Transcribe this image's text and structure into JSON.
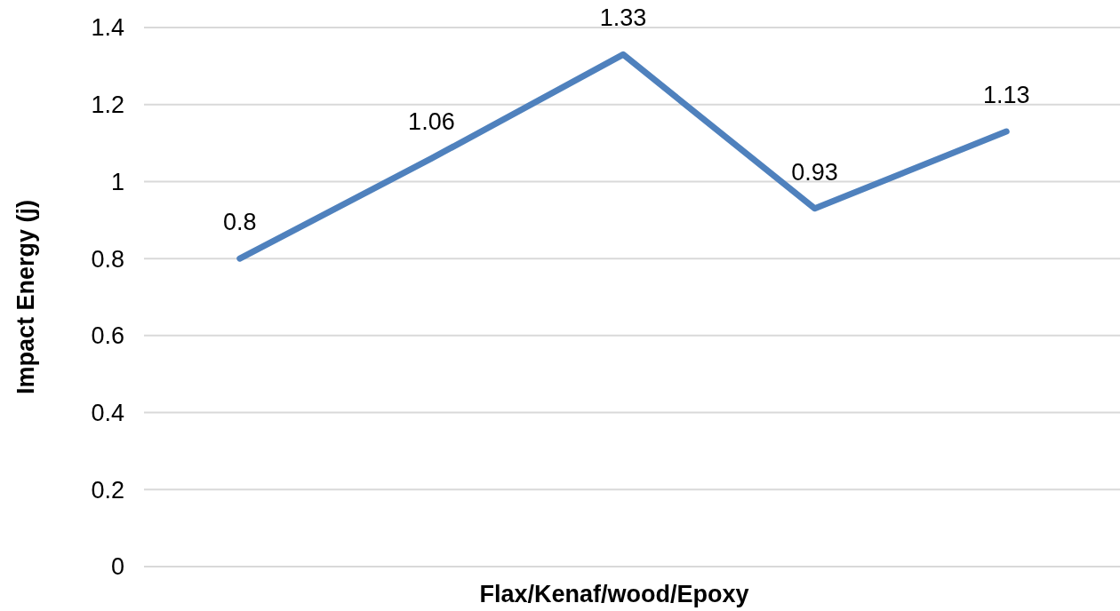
{
  "chart_data": {
    "type": "line",
    "xlabel": "Flax/Kenaf/wood/Epoxy",
    "ylabel": "Impact Energy (j)",
    "categories": [
      null,
      null,
      null,
      null,
      null
    ],
    "series": [
      {
        "color": "#4f81bd",
        "values": [
          0.8,
          1.06,
          1.33,
          0.93,
          1.13
        ]
      }
    ],
    "ylim": [
      0,
      1.4
    ],
    "yticks": [
      0,
      0.2,
      0.4,
      0.6,
      0.8,
      1,
      1.2,
      1.4
    ],
    "grid": "y",
    "data_labels": true
  }
}
